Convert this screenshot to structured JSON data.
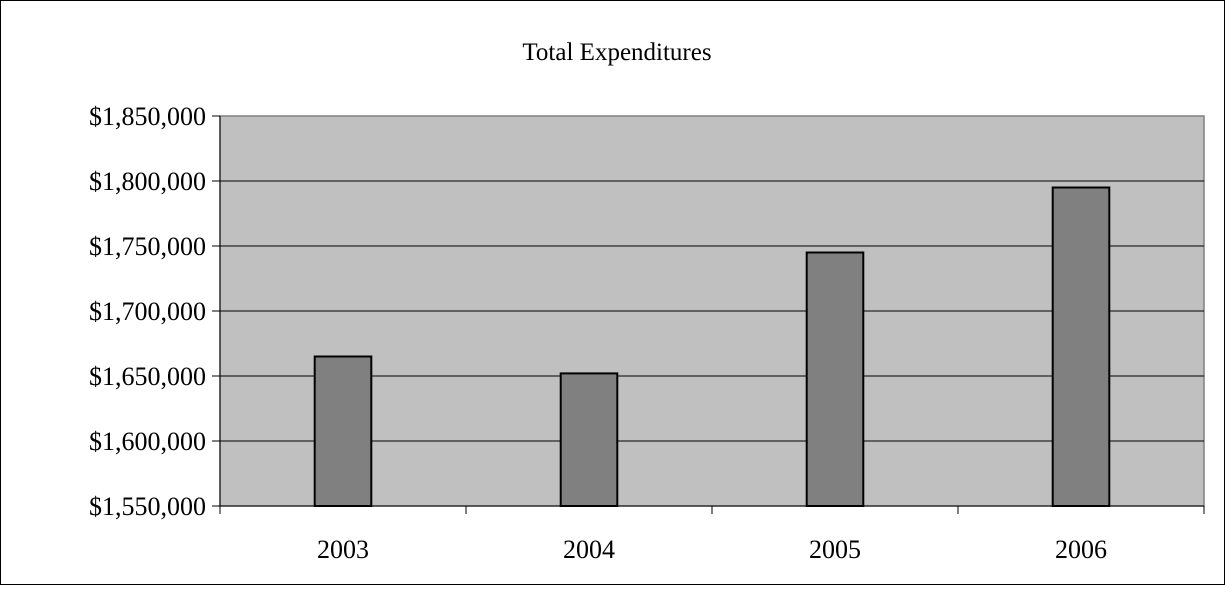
{
  "chart_data": {
    "type": "bar",
    "title": "Total Expenditures",
    "xlabel": "",
    "ylabel": "",
    "categories": [
      "2003",
      "2004",
      "2005",
      "2006"
    ],
    "values": [
      1665000,
      1652000,
      1745000,
      1795000
    ],
    "ylim": [
      1550000,
      1850000
    ],
    "yticks": [
      1550000,
      1600000,
      1650000,
      1700000,
      1750000,
      1800000,
      1850000
    ],
    "ytick_labels": [
      "$1,550,000",
      "$1,600,000",
      "$1,650,000",
      "$1,700,000",
      "$1,750,000",
      "$1,800,000",
      "$1,850,000"
    ],
    "grid": true,
    "legend": "none",
    "colors": {
      "plot_background": "#c0c0c0",
      "bar_fill": "#808080",
      "bar_stroke": "#000000",
      "gridline": "#000000",
      "frame": "#000000"
    }
  }
}
